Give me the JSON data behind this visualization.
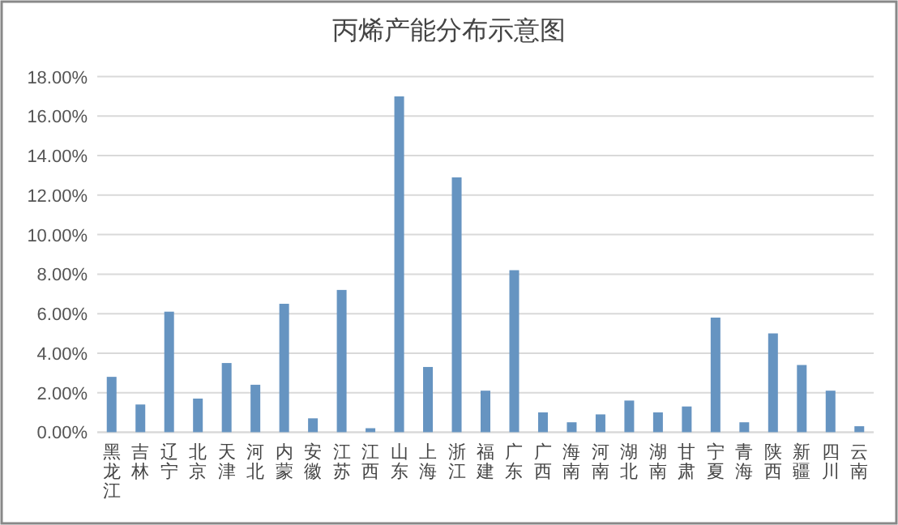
{
  "chart_data": {
    "type": "bar",
    "title": "丙烯产能分布示意图",
    "categories": [
      "黑龙江",
      "吉林",
      "辽宁",
      "北京",
      "天津",
      "河北",
      "内蒙",
      "安徽",
      "江苏",
      "江西",
      "山东",
      "上海",
      "浙江",
      "福建",
      "广东",
      "广西",
      "海南",
      "河南",
      "湖北",
      "湖南",
      "甘肃",
      "宁夏",
      "青海",
      "陕西",
      "新疆",
      "四川",
      "云南"
    ],
    "values": [
      2.8,
      1.4,
      6.1,
      1.7,
      3.5,
      2.4,
      6.5,
      0.7,
      7.2,
      0.2,
      17.0,
      3.3,
      12.9,
      2.1,
      8.2,
      1.0,
      0.5,
      0.9,
      1.6,
      1.0,
      1.3,
      5.8,
      0.5,
      5.0,
      3.4,
      2.1,
      0.3
    ],
    "color": "#6694c1",
    "ylim": [
      0,
      18
    ],
    "yticks": [
      {
        "value": 0,
        "label": "0.00%"
      },
      {
        "value": 2,
        "label": "2.00%"
      },
      {
        "value": 4,
        "label": "4.00%"
      },
      {
        "value": 6,
        "label": "6.00%"
      },
      {
        "value": 8,
        "label": "8.00%"
      },
      {
        "value": 10,
        "label": "10.00%"
      },
      {
        "value": 12,
        "label": "12.00%"
      },
      {
        "value": 14,
        "label": "14.00%"
      },
      {
        "value": 16,
        "label": "16.00%"
      },
      {
        "value": 18,
        "label": "18.00%"
      }
    ],
    "grid": "y"
  }
}
